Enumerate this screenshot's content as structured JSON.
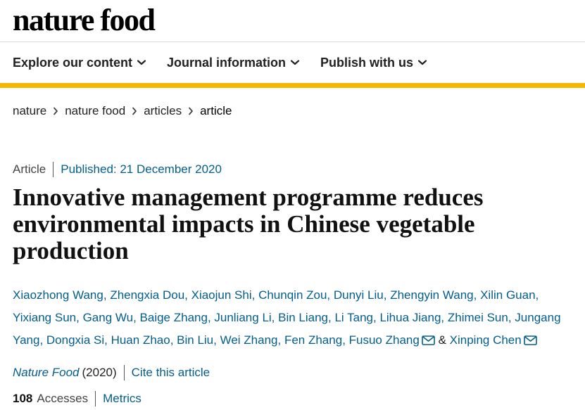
{
  "site": {
    "logo": "nature food"
  },
  "nav": {
    "items": [
      {
        "label": "Explore our content"
      },
      {
        "label": "Journal information"
      },
      {
        "label": "Publish with us"
      }
    ],
    "chevron_icon": "chevron-down-icon"
  },
  "breadcrumb": {
    "items": [
      {
        "label": "nature"
      },
      {
        "label": "nature food"
      },
      {
        "label": "articles"
      },
      {
        "label": "article"
      }
    ],
    "separator_icon": "chevron-right-icon"
  },
  "article": {
    "type": "Article",
    "published": "Published: 21 December 2020",
    "title": "Innovative management programme reduces environmental impacts in Chinese vegetable production",
    "authors": [
      "Xiaozhong Wang",
      "Zhengxia Dou",
      "Xiaojun Shi",
      "Chunqin Zou",
      "Dunyi Liu",
      "Zhengyin Wang",
      "Xilin Guan",
      "Yixiang Sun",
      "Gang Wu",
      "Baige Zhang",
      "Junliang Li",
      "Bin Liang",
      "Li Tang",
      "Lihua Jiang",
      "Zhimei Sun",
      "Jungang Yang",
      "Dongxia Si",
      "Huan Zhao",
      "Bin Liu",
      "Wei Zhang",
      "Fen Zhang"
    ],
    "corresponding_authors": [
      "Fusuo Zhang",
      "Xinping Chen"
    ],
    "author_separator": ", ",
    "ampersand": "&",
    "mail_icon": "mail-icon",
    "journal": "Nature Food",
    "year": "(2020)",
    "cite_label": "Cite this article",
    "accesses_count": "108",
    "accesses_label": "Accesses",
    "metrics_label": "Metrics"
  },
  "colors": {
    "accent_yellow": "#f5b800",
    "link_blue": "#025e8d",
    "text": "#222222"
  }
}
